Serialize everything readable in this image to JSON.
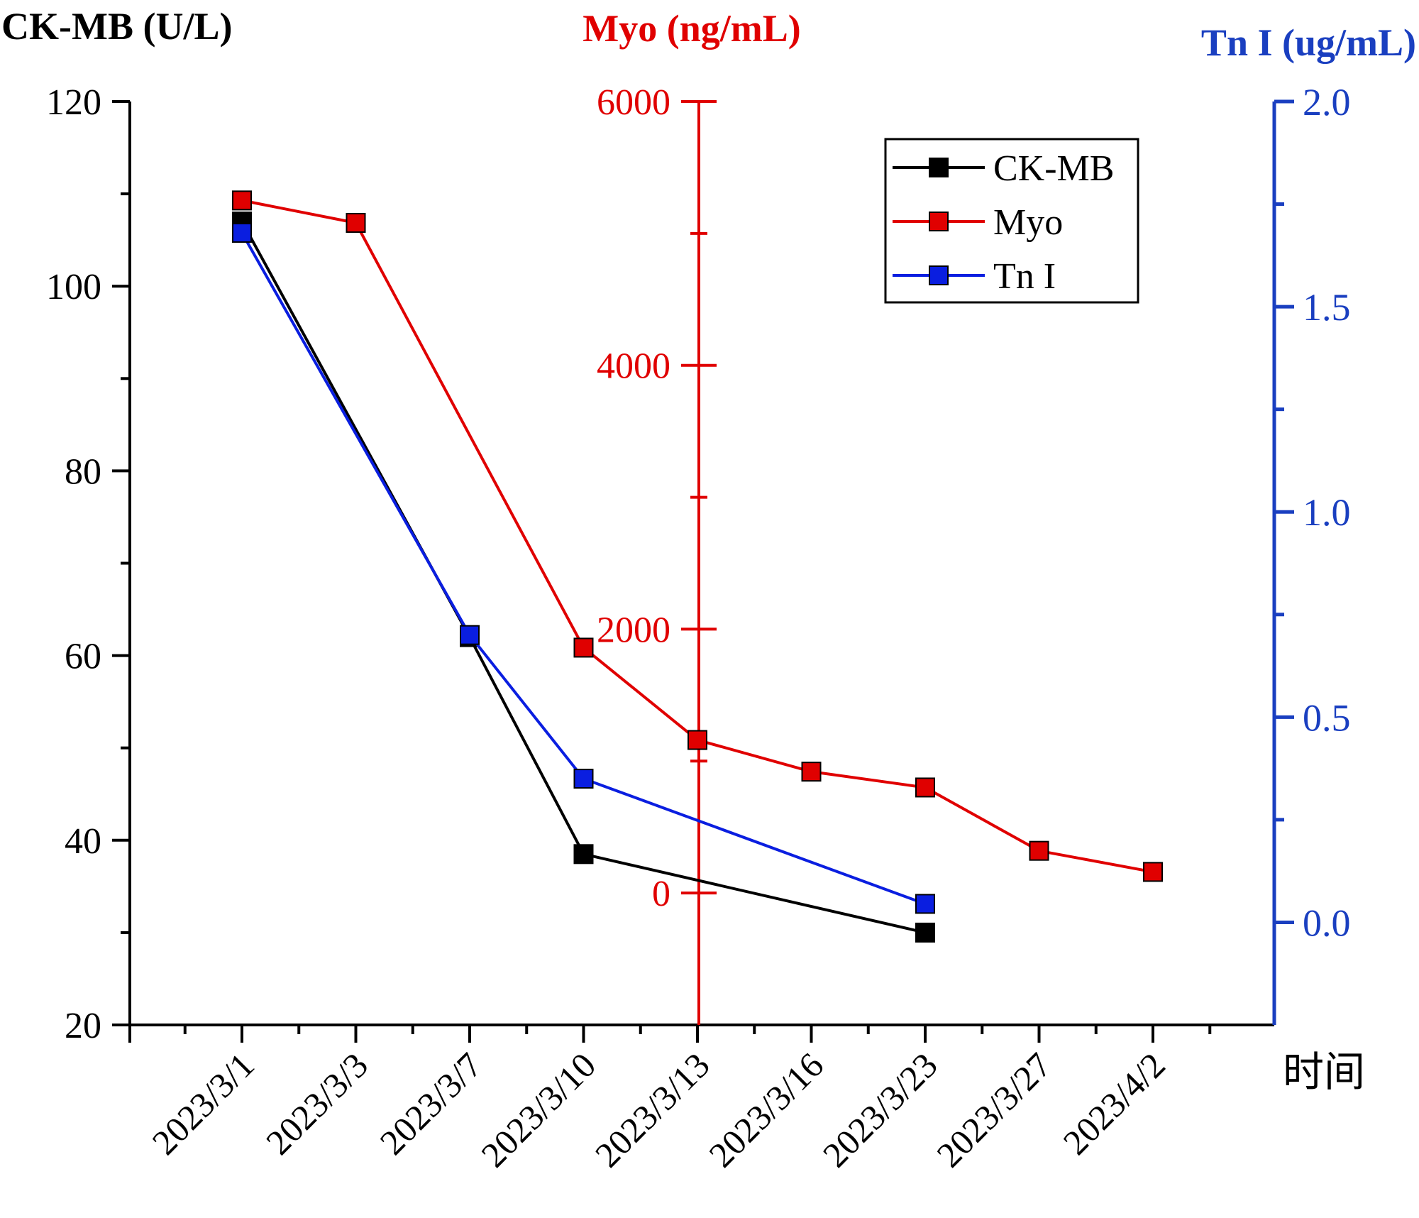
{
  "chart_data": {
    "type": "line",
    "title": "",
    "categories": [
      "2023/3/1",
      "2023/3/3",
      "2023/3/7",
      "2023/3/10",
      "2023/3/13",
      "2023/3/16",
      "2023/3/23",
      "2023/3/27",
      "2023/4/2"
    ],
    "xlabel": "时间",
    "axes": {
      "left": {
        "label": "CK-MB (U/L)",
        "range": [
          20,
          120
        ],
        "ticks": [
          20,
          40,
          60,
          80,
          100,
          120
        ],
        "color": "#000000"
      },
      "middle": {
        "label": "Myo (ng/mL)",
        "range": [
          -1000,
          6000
        ],
        "ticks": [
          0,
          2000,
          4000,
          6000
        ],
        "color": "#e00000"
      },
      "right": {
        "label": "Tn I (ug/mL)",
        "range": [
          -0.25,
          2.0
        ],
        "ticks": [
          "0.0",
          "0.5",
          "1.0",
          "1.5",
          "2.0"
        ],
        "color": "#1a3fc0"
      }
    },
    "series": [
      {
        "name": "CK-MB",
        "axis": "left",
        "color": "#000000",
        "points": [
          {
            "category": "2023/3/1",
            "value": 107
          },
          {
            "category": "2023/3/7",
            "value": 62
          },
          {
            "category": "2023/3/10",
            "value": 38.5
          },
          {
            "category": "2023/3/23",
            "value": 30
          }
        ]
      },
      {
        "name": "Myo",
        "axis": "middle",
        "color": "#e00000",
        "points": [
          {
            "category": "2023/3/1",
            "value": 5250
          },
          {
            "category": "2023/3/3",
            "value": 5080
          },
          {
            "category": "2023/3/10",
            "value": 1860
          },
          {
            "category": "2023/3/13",
            "value": 1160
          },
          {
            "category": "2023/3/16",
            "value": 920
          },
          {
            "category": "2023/3/23",
            "value": 800
          },
          {
            "category": "2023/3/27",
            "value": 320
          },
          {
            "category": "2023/4/2",
            "value": 160
          }
        ]
      },
      {
        "name": "Tn I",
        "axis": "right",
        "color": "#0a1ee0",
        "points": [
          {
            "category": "2023/3/1",
            "value": 1.68
          },
          {
            "category": "2023/3/7",
            "value": 0.7
          },
          {
            "category": "2023/3/10",
            "value": 0.35
          },
          {
            "category": "2023/3/23",
            "value": 0.045
          }
        ]
      }
    ],
    "legend": {
      "position": "top-right",
      "entries": [
        "CK-MB",
        "Myo",
        "Tn I"
      ]
    }
  }
}
